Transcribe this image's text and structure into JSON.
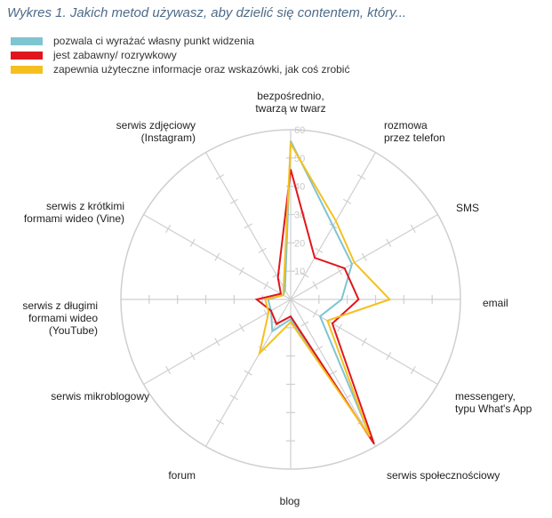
{
  "chart_data": {
    "type": "radar",
    "title": "Wykres 1. Jakich metod używasz, aby dzielić się contentem, który...",
    "categories": [
      [
        "bezpośrednio,",
        "twarzą w twarz"
      ],
      [
        "rozmowa",
        "przez telefon"
      ],
      [
        "SMS"
      ],
      [
        "email"
      ],
      [
        "messengery,",
        "typu What's App"
      ],
      [
        "serwis społecznościowy"
      ],
      [
        "blog"
      ],
      [
        "forum"
      ],
      [
        "serwis mikroblogowy"
      ],
      [
        "serwis z długimi",
        "formami wideo",
        "(YouTube)"
      ],
      [
        "serwis z krótkimi",
        "formami wideo (Vine)"
      ],
      [
        "serwis zdjęciowy",
        "(Instagram)"
      ]
    ],
    "rlim": [
      0,
      60
    ],
    "ticks": [
      "10",
      "20",
      "30",
      "40",
      "50",
      "60"
    ],
    "legend_position": "top-left",
    "series": [
      {
        "name": "pozwala ci wyrażać własny punkt widzenia",
        "color": "#7fc4d1",
        "values": [
          56,
          30,
          25,
          18,
          12,
          57,
          7,
          13,
          8,
          8,
          3,
          4
        ]
      },
      {
        "name": "jest zabawny/ rozrywkowy",
        "color": "#e0161d",
        "values": [
          46,
          17,
          22,
          24,
          17,
          59,
          6,
          10,
          8,
          12,
          4,
          9
        ]
      },
      {
        "name": "zapewnia użyteczne informacje oraz wskazówki, jak coś zrobić",
        "color": "#f5c01f",
        "values": [
          55,
          32,
          26,
          35,
          15,
          56,
          8,
          22,
          9,
          9,
          3,
          5
        ]
      }
    ]
  }
}
